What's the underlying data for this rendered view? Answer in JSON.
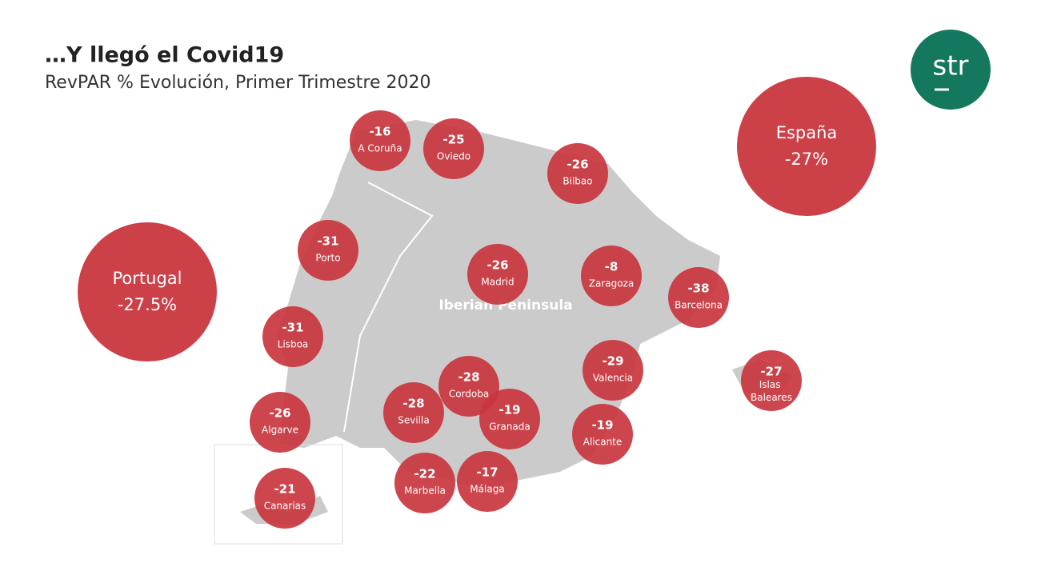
{
  "header": {
    "title": "…Y llegó el Covid19",
    "subtitle": "RevPAR % Evolución, Primer Trimestre 2020",
    "logo": "str"
  },
  "map_label": "Iberian Peninsula",
  "countries": [
    {
      "name": "Portugal",
      "value": -27.5,
      "value_label": "-27.5%"
    },
    {
      "name": "España",
      "value": -27,
      "value_label": "-27%"
    }
  ],
  "cities": [
    {
      "name": "A Coruña",
      "value": -16
    },
    {
      "name": "Oviedo",
      "value": -25
    },
    {
      "name": "Bilbao",
      "value": -26
    },
    {
      "name": "Porto",
      "value": -31
    },
    {
      "name": "Madrid",
      "value": -26
    },
    {
      "name": "Zaragoza",
      "value": -8
    },
    {
      "name": "Barcelona",
      "value": -38
    },
    {
      "name": "Lisboa",
      "value": -31
    },
    {
      "name": "Valencia",
      "value": -29
    },
    {
      "name": "Islas Baleares",
      "value": -27
    },
    {
      "name": "Cordoba",
      "value": -28
    },
    {
      "name": "Sevilla",
      "value": -28
    },
    {
      "name": "Granada",
      "value": -19
    },
    {
      "name": "Alicante",
      "value": -19
    },
    {
      "name": "Algarve",
      "value": -26
    },
    {
      "name": "Canarias",
      "value": -21
    },
    {
      "name": "Marbella",
      "value": -22
    },
    {
      "name": "Málaga",
      "value": -17
    }
  ]
}
